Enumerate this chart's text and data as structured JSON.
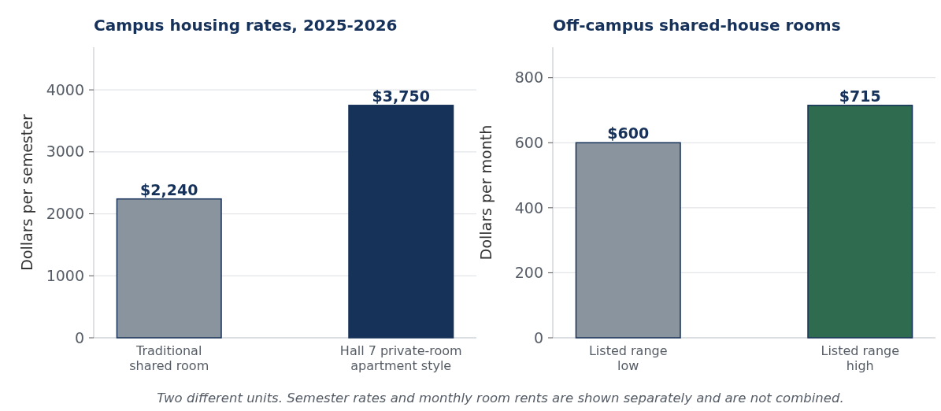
{
  "chart_data": [
    {
      "type": "bar",
      "title": "Campus housing rates, 2025-2026",
      "ylabel": "Dollars per semester",
      "categories": [
        "Traditional\nshared room",
        "Hall 7 private-room\napartment style"
      ],
      "values": [
        2240,
        3750
      ],
      "colors": [
        "#8a949e",
        "#163259"
      ],
      "value_labels": [
        "$2,240",
        "$3,750"
      ],
      "ylim": [
        0,
        4687.5
      ],
      "yticks": [
        0,
        1000,
        2000,
        3000,
        4000
      ],
      "grid": "y",
      "annotations": [
        "Two different units. Semester rates and monthly room rents are shown separately and are not combined."
      ]
    },
    {
      "type": "bar",
      "title": "Off-campus shared-house rooms",
      "ylabel": "Dollars per month",
      "categories": [
        "Listed range\nlow",
        "Listed range\nhigh"
      ],
      "values": [
        600,
        715
      ],
      "colors": [
        "#8a949e",
        "#2e6b4f"
      ],
      "value_labels": [
        "$600",
        "$715"
      ],
      "ylim": [
        0,
        893.75
      ],
      "yticks": [
        0,
        200,
        400,
        600,
        800
      ],
      "grid": "y"
    }
  ]
}
